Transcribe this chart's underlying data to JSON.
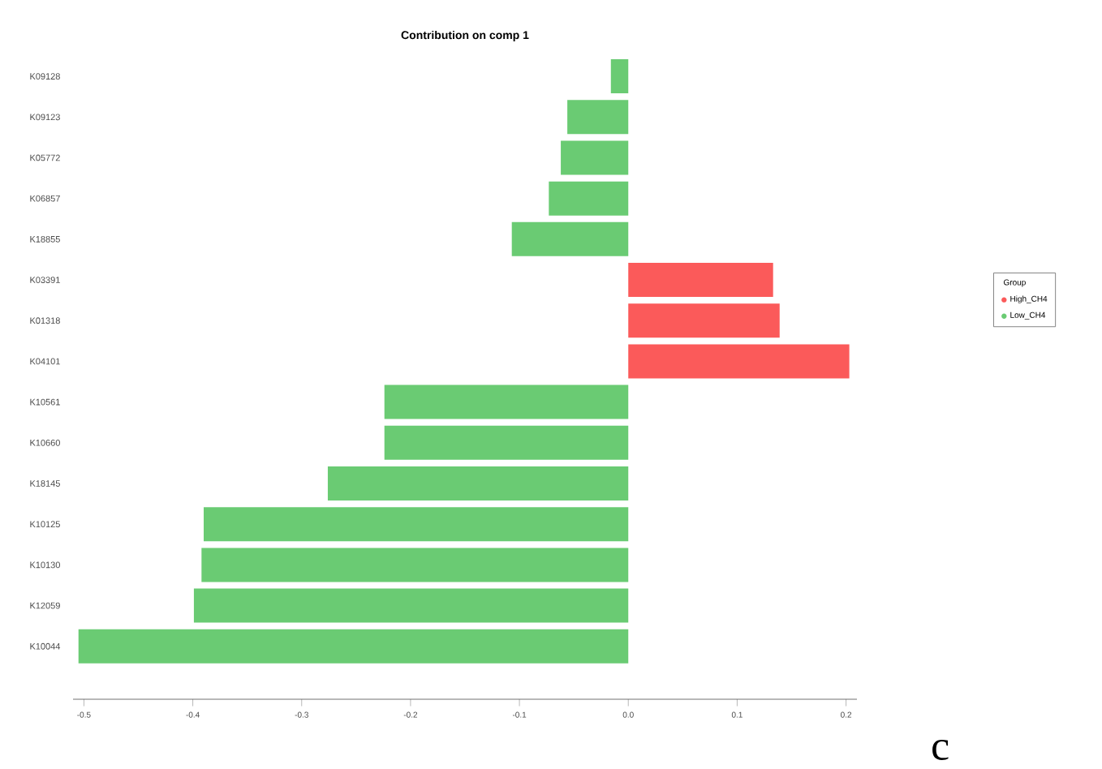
{
  "chart_data": {
    "type": "bar",
    "orientation": "horizontal",
    "title": "Contribution on comp 1",
    "categories": [
      "K09128",
      "K09123",
      "K05772",
      "K06857",
      "K18855",
      "K03391",
      "K01318",
      "K04101",
      "K10561",
      "K10660",
      "K18145",
      "K10125",
      "K10130",
      "K12059",
      "K10044"
    ],
    "series": [
      {
        "name": "High_CH4",
        "color": "#fb5a5a",
        "values": [
          null,
          null,
          null,
          null,
          null,
          0.133,
          0.139,
          0.203,
          null,
          null,
          null,
          null,
          null,
          null,
          null
        ]
      },
      {
        "name": "Low_CH4",
        "color": "#6acb73",
        "values": [
          -0.016,
          -0.056,
          -0.062,
          -0.073,
          -0.107,
          null,
          null,
          null,
          -0.224,
          -0.224,
          -0.276,
          -0.39,
          -0.392,
          -0.399,
          -0.505
        ]
      }
    ],
    "xlim": [
      -0.51,
      0.21
    ],
    "xticks": [
      -0.5,
      -0.4,
      -0.3,
      -0.2,
      -0.1,
      {
        "value": 0,
        "label": "0.0"
      },
      0.1,
      0.2
    ],
    "legend_title": "Group",
    "legend": "right",
    "grid": false,
    "annotations": [
      "c"
    ]
  }
}
